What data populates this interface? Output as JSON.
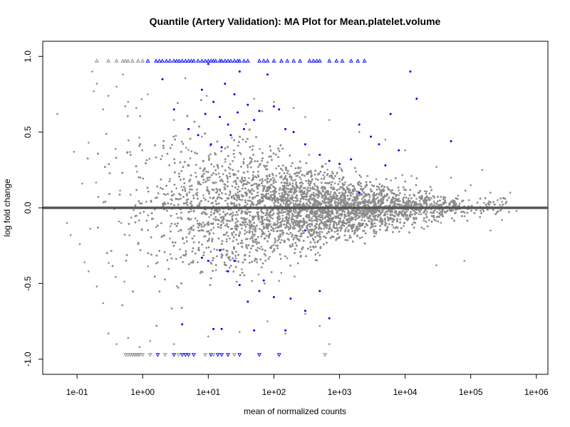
{
  "chart_data": {
    "type": "scatter",
    "title": "Quantile (Artery Validation): MA Plot for Mean.platelet.volume",
    "xlabel": "mean of normalized counts",
    "ylabel": "log fold change",
    "x_scale": "log",
    "xlim": [
      0.03,
      1500000
    ],
    "ylim": [
      -1.1,
      1.1
    ],
    "x_ticks": [
      {
        "value": 0.1,
        "label": "1e-01"
      },
      {
        "value": 1,
        "label": "1e+00"
      },
      {
        "value": 10,
        "label": "1e+01"
      },
      {
        "value": 100,
        "label": "1e+02"
      },
      {
        "value": 1000,
        "label": "1e+03"
      },
      {
        "value": 10000,
        "label": "1e+04"
      },
      {
        "value": 100000,
        "label": "1e+05"
      },
      {
        "value": 1000000,
        "label": "1e+06"
      }
    ],
    "y_ticks": [
      {
        "value": -1.0,
        "label": "-1.0"
      },
      {
        "value": -0.5,
        "label": "-0.5"
      },
      {
        "value": 0.0,
        "label": "0.0"
      },
      {
        "value": 0.5,
        "label": "0.5"
      },
      {
        "value": 1.0,
        "label": "1.0"
      }
    ],
    "reference_line": {
      "y": 0,
      "color": "#555555"
    },
    "grid": false,
    "colors": {
      "not_significant": "#8c8c8c",
      "significant": "#0000ff"
    },
    "series": [
      {
        "points": [
          [
            0.05,
            0.62
          ],
          [
            0.09,
            0.37
          ],
          [
            0.12,
            0.16
          ],
          [
            0.15,
            0.43
          ],
          [
            0.17,
            0.9
          ],
          [
            0.18,
            0.77
          ],
          [
            0.2,
            0.82
          ],
          [
            0.25,
            0.65
          ],
          [
            0.3,
            0.74
          ],
          [
            0.4,
            0.8
          ],
          [
            0.5,
            0.88
          ],
          [
            0.6,
            0.7
          ],
          [
            0.8,
            0.66
          ],
          [
            1.2,
            0.75
          ],
          [
            0.07,
            -0.1
          ],
          [
            0.08,
            -0.18
          ],
          [
            0.11,
            -0.24
          ],
          [
            0.13,
            -0.36
          ],
          [
            0.15,
            -0.42
          ],
          [
            0.2,
            -0.52
          ],
          [
            0.25,
            -0.63
          ],
          [
            0.3,
            -0.83
          ],
          [
            0.4,
            -0.9
          ],
          [
            0.6,
            -0.86
          ],
          [
            0.9,
            -0.92
          ],
          [
            1.3,
            -0.88
          ],
          [
            3.0,
            -0.9
          ],
          [
            10,
            -0.85
          ],
          [
            30,
            -0.82
          ],
          [
            80,
            -0.75
          ],
          [
            150,
            -0.83
          ],
          [
            300,
            -0.7
          ],
          [
            500,
            -0.78
          ],
          [
            700,
            -0.9
          ],
          [
            30000,
            -0.38
          ],
          [
            80000,
            -0.35
          ],
          [
            200000,
            -0.15
          ],
          [
            300000,
            -0.08
          ],
          [
            500000,
            -0.02
          ],
          [
            700000,
            0.0
          ],
          [
            300000,
            0.04
          ],
          [
            150000,
            0.25
          ],
          [
            400000,
            0.1
          ],
          [
            200000,
            0.1
          ],
          [
            100000,
            0.15
          ],
          [
            50000,
            0.2
          ],
          [
            30000,
            0.27
          ],
          [
            10000,
            0.38
          ],
          [
            5000,
            0.45
          ],
          [
            2000,
            0.5
          ],
          [
            700,
            0.58
          ],
          [
            300,
            0.6
          ],
          [
            200,
            0.66
          ],
          [
            100,
            0.7
          ],
          [
            50,
            0.72
          ],
          [
            20,
            0.55
          ],
          [
            8,
            0.47
          ],
          [
            3,
            0.58
          ]
        ]
      },
      {
        "name": "",
        "points": [
          [
            2.0,
            0.85
          ],
          [
            8.0,
            0.78
          ],
          [
            10.0,
            0.95
          ],
          [
            12.0,
            0.7
          ],
          [
            15.0,
            0.6
          ],
          [
            18.0,
            0.82
          ],
          [
            20.0,
            0.55
          ],
          [
            22.0,
            0.48
          ],
          [
            25.0,
            0.75
          ],
          [
            28.0,
            0.63
          ],
          [
            30.0,
            0.9
          ],
          [
            35.0,
            0.52
          ],
          [
            40.0,
            0.68
          ],
          [
            50.0,
            0.58
          ],
          [
            60.0,
            0.64
          ],
          [
            80.0,
            0.88
          ],
          [
            100.0,
            0.67
          ],
          [
            120.0,
            0.65
          ],
          [
            150.0,
            0.52
          ],
          [
            200.0,
            0.5
          ],
          [
            300.0,
            0.42
          ],
          [
            500.0,
            0.35
          ],
          [
            700.0,
            0.31
          ],
          [
            1000.0,
            0.29
          ],
          [
            1500.0,
            0.32
          ],
          [
            2000.0,
            0.55
          ],
          [
            3000.0,
            0.47
          ],
          [
            4000.0,
            0.42
          ],
          [
            5000.0,
            0.28
          ],
          [
            6000.0,
            0.62
          ],
          [
            8000.0,
            0.38
          ],
          [
            12000.0,
            0.9
          ],
          [
            15000.0,
            0.72
          ],
          [
            50000.0,
            0.44
          ],
          [
            3.0,
            0.65
          ],
          [
            5.0,
            0.52
          ],
          [
            7.0,
            0.48
          ],
          [
            9.0,
            0.62
          ],
          [
            11.0,
            0.42
          ],
          [
            16.0,
            0.4
          ],
          [
            8.0,
            -0.33
          ],
          [
            12.0,
            -0.8
          ],
          [
            16.0,
            -0.8
          ],
          [
            20.0,
            -0.42
          ],
          [
            25.0,
            -0.35
          ],
          [
            30.0,
            -0.51
          ],
          [
            40.0,
            -0.62
          ],
          [
            50.0,
            -0.81
          ],
          [
            60.0,
            -0.55
          ],
          [
            70.0,
            -0.48
          ],
          [
            100.0,
            -0.59
          ],
          [
            150.0,
            -0.81
          ],
          [
            180.0,
            -0.6
          ],
          [
            300.0,
            -0.68
          ],
          [
            500.0,
            -0.55
          ],
          [
            700.0,
            -0.73
          ],
          [
            4.0,
            -0.77
          ],
          [
            10.0,
            -0.35
          ],
          [
            15.0,
            -0.28
          ],
          [
            300.0,
            -0.15
          ],
          [
            2000.0,
            0.1
          ]
        ]
      }
    ],
    "capped_points_top": [
      {
        "x": 0.2,
        "sig": false
      },
      {
        "x": 0.3,
        "sig": false
      },
      {
        "x": 0.4,
        "sig": false
      },
      {
        "x": 0.5,
        "sig": false
      },
      {
        "x": 0.55,
        "sig": false
      },
      {
        "x": 0.6,
        "sig": false
      },
      {
        "x": 0.7,
        "sig": false
      },
      {
        "x": 0.85,
        "sig": false
      },
      {
        "x": 1.0,
        "sig": false
      },
      {
        "x": 1.2,
        "sig": true
      },
      {
        "x": 1.6,
        "sig": true
      },
      {
        "x": 1.8,
        "sig": true
      },
      {
        "x": 2.0,
        "sig": true
      },
      {
        "x": 2.3,
        "sig": true
      },
      {
        "x": 2.6,
        "sig": true
      },
      {
        "x": 3.0,
        "sig": true
      },
      {
        "x": 3.3,
        "sig": true
      },
      {
        "x": 3.6,
        "sig": true
      },
      {
        "x": 4.0,
        "sig": true
      },
      {
        "x": 4.5,
        "sig": true
      },
      {
        "x": 5.0,
        "sig": true
      },
      {
        "x": 5.5,
        "sig": true
      },
      {
        "x": 6.0,
        "sig": true
      },
      {
        "x": 7.0,
        "sig": true
      },
      {
        "x": 8.0,
        "sig": true
      },
      {
        "x": 9.0,
        "sig": true
      },
      {
        "x": 10.0,
        "sig": true
      },
      {
        "x": 11.0,
        "sig": true
      },
      {
        "x": 12.0,
        "sig": true
      },
      {
        "x": 13.0,
        "sig": true
      },
      {
        "x": 15.0,
        "sig": true
      },
      {
        "x": 16.0,
        "sig": true
      },
      {
        "x": 18.0,
        "sig": true
      },
      {
        "x": 20.0,
        "sig": true
      },
      {
        "x": 22.0,
        "sig": true
      },
      {
        "x": 25.0,
        "sig": true
      },
      {
        "x": 28.0,
        "sig": true
      },
      {
        "x": 30.0,
        "sig": true
      },
      {
        "x": 35.0,
        "sig": true
      },
      {
        "x": 40.0,
        "sig": true
      },
      {
        "x": 60.0,
        "sig": true
      },
      {
        "x": 70.0,
        "sig": true
      },
      {
        "x": 80.0,
        "sig": true
      },
      {
        "x": 100.0,
        "sig": true
      },
      {
        "x": 130.0,
        "sig": true
      },
      {
        "x": 160.0,
        "sig": true
      },
      {
        "x": 200.0,
        "sig": true
      },
      {
        "x": 250.0,
        "sig": true
      },
      {
        "x": 350.0,
        "sig": true
      },
      {
        "x": 400.0,
        "sig": true
      },
      {
        "x": 450.0,
        "sig": true
      },
      {
        "x": 500.0,
        "sig": true
      },
      {
        "x": 700.0,
        "sig": true
      },
      {
        "x": 900.0,
        "sig": true
      },
      {
        "x": 1100.0,
        "sig": true
      },
      {
        "x": 1500.0,
        "sig": true
      },
      {
        "x": 1900.0,
        "sig": true
      },
      {
        "x": 2400.0,
        "sig": true
      }
    ],
    "capped_points_bottom": [
      {
        "x": 0.55,
        "sig": false
      },
      {
        "x": 0.6,
        "sig": false
      },
      {
        "x": 0.65,
        "sig": false
      },
      {
        "x": 0.7,
        "sig": false
      },
      {
        "x": 0.75,
        "sig": false
      },
      {
        "x": 0.8,
        "sig": false
      },
      {
        "x": 0.85,
        "sig": false
      },
      {
        "x": 0.9,
        "sig": false
      },
      {
        "x": 1.0,
        "sig": false
      },
      {
        "x": 1.3,
        "sig": false
      },
      {
        "x": 1.7,
        "sig": true
      },
      {
        "x": 2.2,
        "sig": false
      },
      {
        "x": 3.0,
        "sig": true
      },
      {
        "x": 3.5,
        "sig": false
      },
      {
        "x": 4.0,
        "sig": true
      },
      {
        "x": 4.5,
        "sig": true
      },
      {
        "x": 5.0,
        "sig": true
      },
      {
        "x": 6.0,
        "sig": true
      },
      {
        "x": 9.0,
        "sig": false
      },
      {
        "x": 11.0,
        "sig": true
      },
      {
        "x": 12.0,
        "sig": false
      },
      {
        "x": 14.0,
        "sig": true
      },
      {
        "x": 16.0,
        "sig": true
      },
      {
        "x": 20.0,
        "sig": true
      },
      {
        "x": 25.0,
        "sig": false
      },
      {
        "x": 30.0,
        "sig": true
      },
      {
        "x": 60.0,
        "sig": true
      },
      {
        "x": 120.0,
        "sig": true
      },
      {
        "x": 600.0,
        "sig": false
      }
    ],
    "background_cloud": {
      "log10_x_mean": 2.5,
      "log10_x_sd": 1.6,
      "log10_x_min": -0.9,
      "log10_x_max": 5.6,
      "y_spread_low_counts": 0.33,
      "y_spread_high_counts": 0.03,
      "total_points": 10500
    }
  }
}
